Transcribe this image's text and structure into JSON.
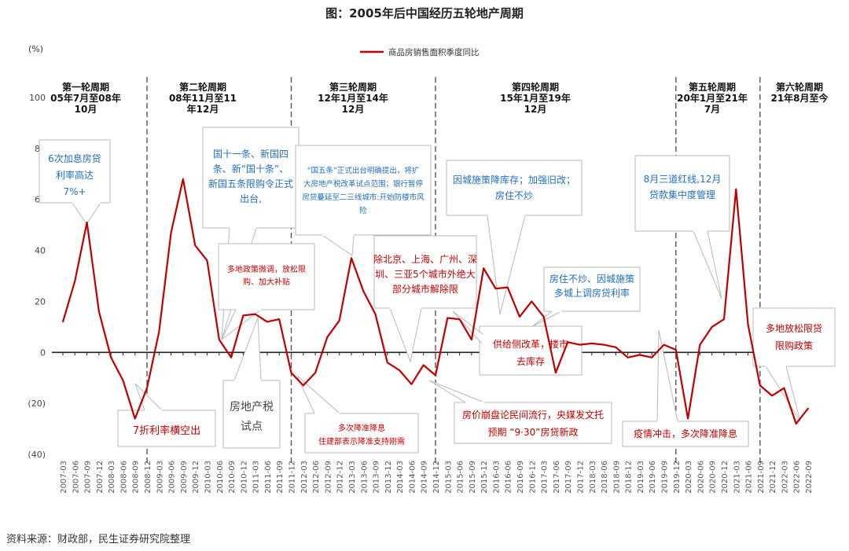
{
  "title": "图：2005年后中国经历五轮地产周期",
  "source": "资料来源：财政部，民生证券研究院整理",
  "chart_data": {
    "type": "line",
    "unit": "(%)",
    "ylim": [
      -40,
      100
    ],
    "yticks": [
      "100",
      "80",
      "60",
      "40",
      "20",
      "0",
      "(20)",
      "(40)"
    ],
    "ytick_values": [
      100,
      80,
      60,
      40,
      20,
      0,
      -20,
      -40
    ],
    "series": [
      {
        "name": "商品房销售面积季度同比",
        "color": "#c00000",
        "x": [
          "2007-03",
          "2007-06",
          "2007-09",
          "2007-12",
          "2008-03",
          "2008-06",
          "2008-09",
          "2008-12",
          "2009-03",
          "2009-06",
          "2009-09",
          "2009-12",
          "2010-03",
          "2010-06",
          "2010-09",
          "2010-12",
          "2011-03",
          "2011-06",
          "2011-09",
          "2011-12",
          "2012-03",
          "2012-06",
          "2012-09",
          "2012-12",
          "2013-03",
          "2013-06",
          "2013-09",
          "2013-12",
          "2014-03",
          "2014-06",
          "2014-09",
          "2014-12",
          "2015-03",
          "2015-06",
          "2015-09",
          "2015-12",
          "2016-03",
          "2016-06",
          "2016-09",
          "2016-12",
          "2017-03",
          "2017-06",
          "2017-09",
          "2017-12",
          "2018-03",
          "2018-06",
          "2018-09",
          "2018-12",
          "2019-03",
          "2019-06",
          "2019-09",
          "2019-12",
          "2020-03",
          "2020-06",
          "2020-09",
          "2020-12",
          "2021-03",
          "2021-06",
          "2021-09",
          "2021-12",
          "2022-03",
          "2022-06",
          "2022-09"
        ],
        "values": [
          12,
          28,
          51,
          16,
          -2,
          -11,
          -26,
          -14,
          8,
          47,
          68,
          42,
          36,
          5,
          -2,
          14.5,
          15,
          12,
          13,
          -8,
          -13,
          -8,
          6,
          12.5,
          37,
          24,
          15,
          -4,
          -7,
          -12.5,
          -5,
          -9,
          13.5,
          13,
          5,
          33,
          25,
          25.5,
          14,
          20,
          14,
          -8,
          4,
          3,
          3.5,
          3,
          2,
          -2,
          -1,
          -2,
          3,
          1,
          -26,
          3,
          10,
          13,
          64,
          11,
          -13,
          -17,
          -14,
          -28,
          -22
        ]
      }
    ],
    "xticks": [
      "2007-03",
      "2007-06",
      "2007-09",
      "2007-12",
      "2008-03",
      "2008-06",
      "2008-09",
      "2008-12",
      "2009-03",
      "2009-06",
      "2009-09",
      "2009-12",
      "2010-03",
      "2010-06",
      "2010-09",
      "2010-12",
      "2011-03",
      "2011-06",
      "2011-09",
      "2011-12",
      "2012-03",
      "2012-06",
      "2012-09",
      "2012-12",
      "2013-03",
      "2013-06",
      "2013-09",
      "2013-12",
      "2014-03",
      "2014-06",
      "2014-09",
      "2014-12",
      "2015-03",
      "2015-06",
      "2015-09",
      "2015-12",
      "2016-03",
      "2016-06",
      "2016-09",
      "2016-12",
      "2017-03",
      "2017-06",
      "2017-09",
      "2017-12",
      "2018-03",
      "2018-06",
      "2018-09",
      "2018-12",
      "2019-03",
      "2019-06",
      "2019-09",
      "2019-12",
      "2020-03",
      "2020-06",
      "2020-09",
      "2020-12",
      "2021-03",
      "2021-06",
      "2021-09",
      "2021-12",
      "2022-03",
      "2022-06",
      "2022-09"
    ],
    "cycle_dividers": [
      "2008-12",
      "2011-12",
      "2014-12",
      "2019-12",
      "2021-09"
    ],
    "cycles": [
      {
        "lines": [
          "第一轮周期",
          "05年7月至08年",
          "10月"
        ]
      },
      {
        "lines": [
          "第二轮周期",
          "08年11月至11",
          "年12月"
        ]
      },
      {
        "lines": [
          "第三轮周期",
          "12年1月至14年",
          "12月"
        ]
      },
      {
        "lines": [
          "第四轮周期",
          "15年1月至19年",
          "12月"
        ]
      },
      {
        "lines": [
          "第五轮周期",
          "20年1月至21年",
          "7月"
        ]
      },
      {
        "lines": [
          "第六轮周期",
          "21年8月至今"
        ]
      }
    ],
    "annotations": [
      {
        "lines": [
          "6次加息房贷",
          "利率高达",
          "7%+"
        ]
      },
      {
        "lines": [
          "7折利率横空出"
        ]
      },
      {
        "lines": [
          "国十一条、新国四",
          "条、新“国十条”、",
          "新国五条限购令正式",
          "出台,"
        ]
      },
      {
        "lines": [
          "多地政策微调，放松限",
          "购、加大补贴"
        ]
      },
      {
        "lines": [
          "房地产税",
          "试点"
        ]
      },
      {
        "lines": [
          "“国五条”正式出台明确提出，将扩",
          "大房地产税改革试点范围；银行暂停",
          "房贷蔓延至二三线城市:开始防楼市风",
          "险"
        ]
      },
      {
        "lines": [
          "多次降准降息",
          "住建部表示降准支持刚需"
        ]
      },
      {
        "lines": [
          "除北京、上海、广州、深",
          "圳、三亚5个城市外绝大",
          "部分城市解除限"
        ]
      },
      {
        "lines": [
          "因城施策降库存；加强旧改；",
          "房住不炒"
        ]
      },
      {
        "lines": [
          "房住不炒、因城施策",
          "多城上调房贷利率"
        ]
      },
      {
        "lines": [
          "供给侧改革，楼市",
          "去库存"
        ]
      },
      {
        "lines": [
          "房价崩盘论民间流行，央媒发文托",
          "预期 “9·30”房贷新政"
        ]
      },
      {
        "lines": [
          "8月三道红线,12月",
          "贷款集中度管理"
        ]
      },
      {
        "lines": [
          "疫情冲击，多次降准降息"
        ]
      },
      {
        "lines": [
          "多地放松限贷",
          "限购政策"
        ]
      }
    ]
  }
}
